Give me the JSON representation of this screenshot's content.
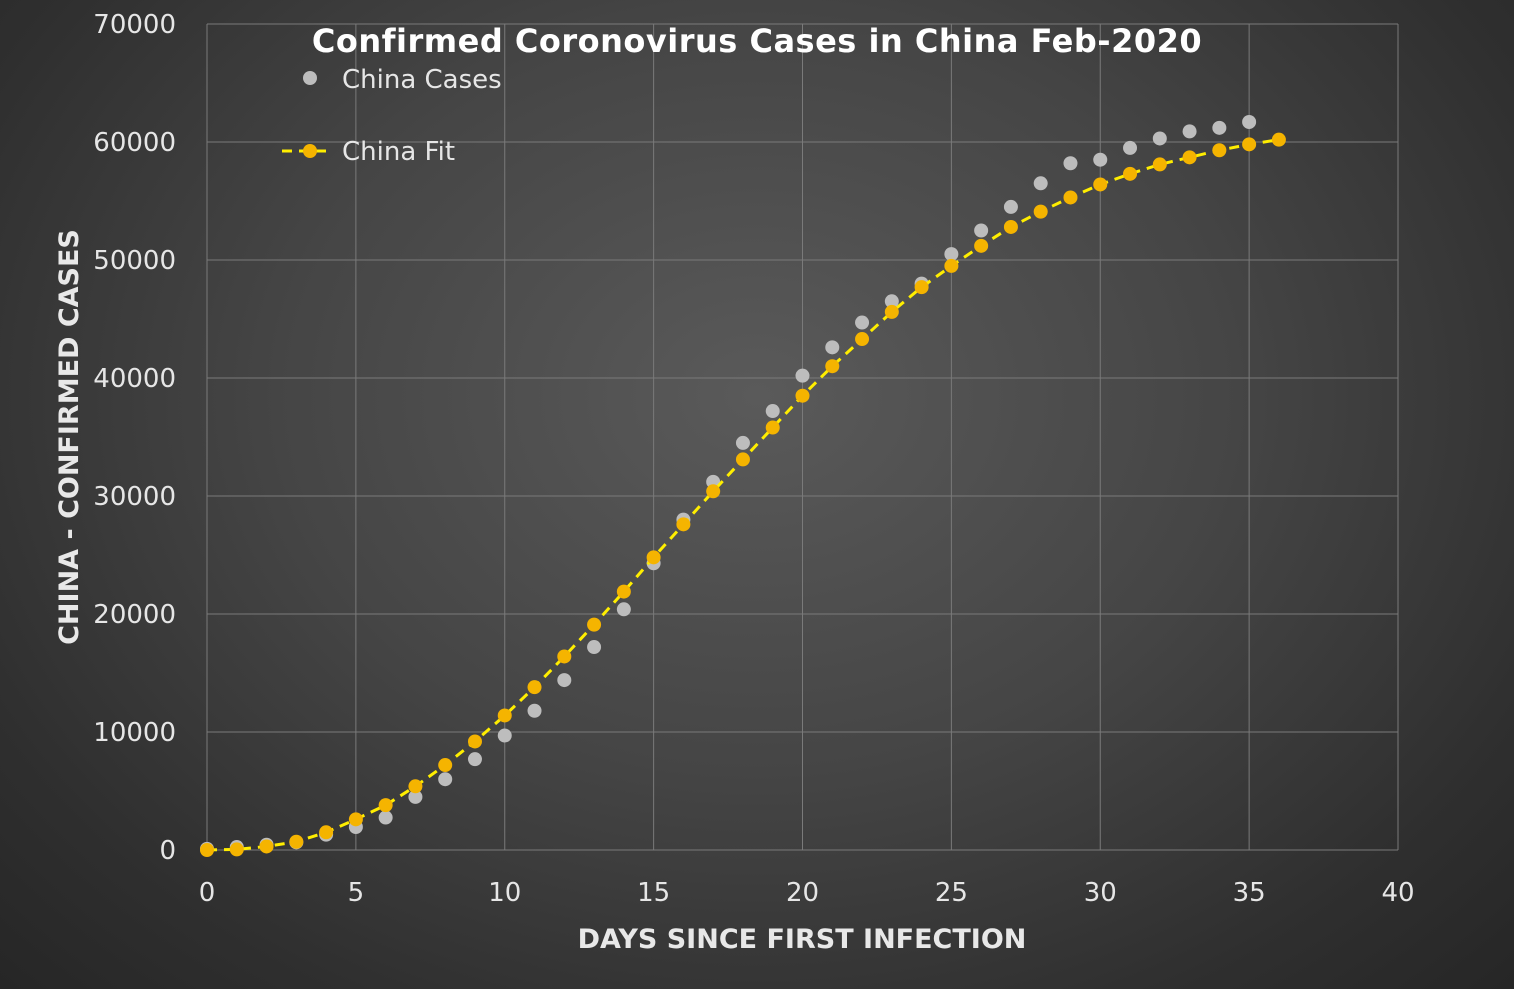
{
  "chart_data": {
    "type": "scatter",
    "title": "Confirmed Coronovirus Cases in China Feb-2020",
    "xlabel": "DAYS SINCE FIRST INFECTION",
    "ylabel": "CHINA - CONFIRMED CASES",
    "xlim": [
      0,
      40
    ],
    "ylim": [
      0,
      70000
    ],
    "xticks": [
      0,
      5,
      10,
      15,
      20,
      25,
      30,
      35,
      40
    ],
    "yticks": [
      0,
      10000,
      20000,
      30000,
      40000,
      50000,
      60000,
      70000
    ],
    "grid": true,
    "legend_position": "top-left",
    "series": [
      {
        "name": "China Cases",
        "style": "markers",
        "color": "#bdbdbd",
        "x": [
          0,
          1,
          2,
          3,
          4,
          5,
          6,
          7,
          8,
          9,
          10,
          11,
          12,
          13,
          14,
          15,
          16,
          17,
          18,
          19,
          20,
          21,
          22,
          23,
          24,
          25,
          26,
          27,
          28,
          29,
          30,
          31,
          32,
          33,
          34,
          35
        ],
        "y": [
          100,
          250,
          450,
          650,
          1300,
          1950,
          2750,
          4500,
          6000,
          7700,
          9700,
          11800,
          14400,
          17200,
          20400,
          24300,
          28000,
          31200,
          34500,
          37200,
          40200,
          42600,
          44700,
          46500,
          48000,
          50500,
          52500,
          54500,
          56500,
          58200,
          58500,
          59500,
          60300,
          60900,
          61200,
          61700
        ]
      },
      {
        "name": "China Fit",
        "style": "dashed-line-markers",
        "color": "#f5b400",
        "line_color": "#ffee00",
        "x": [
          0,
          1,
          2,
          3,
          4,
          5,
          6,
          7,
          8,
          9,
          10,
          11,
          12,
          13,
          14,
          15,
          16,
          17,
          18,
          19,
          20,
          21,
          22,
          23,
          24,
          25,
          26,
          27,
          28,
          29,
          30,
          31,
          32,
          33,
          34,
          35,
          36
        ],
        "y": [
          0,
          50,
          300,
          700,
          1500,
          2600,
          3800,
          5400,
          7200,
          9200,
          11400,
          13800,
          16400,
          19100,
          21900,
          24800,
          27600,
          30400,
          33100,
          35800,
          38500,
          41000,
          43300,
          45600,
          47700,
          49500,
          51200,
          52800,
          54100,
          55300,
          56400,
          57300,
          58100,
          58700,
          59300,
          59800,
          60200
        ]
      }
    ]
  }
}
